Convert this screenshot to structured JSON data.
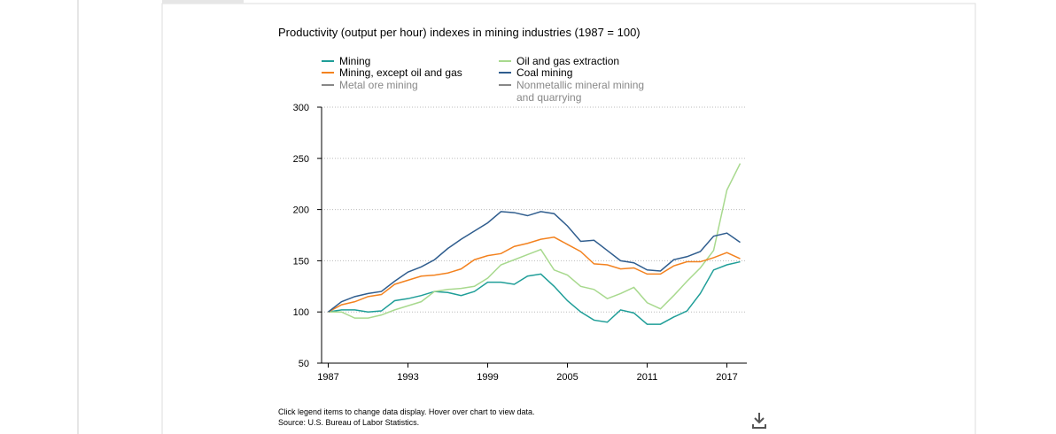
{
  "chart_data": {
    "type": "line",
    "title": "Productivity (output per hour) indexes in mining industries (1987 = 100)",
    "x": [
      1987,
      1988,
      1989,
      1990,
      1991,
      1992,
      1993,
      1994,
      1995,
      1996,
      1997,
      1998,
      1999,
      2000,
      2001,
      2002,
      2003,
      2004,
      2005,
      2006,
      2007,
      2008,
      2009,
      2010,
      2011,
      2012,
      2013,
      2014,
      2015,
      2016,
      2017,
      2018
    ],
    "series": [
      {
        "name": "Mining",
        "color": "#1f9e98",
        "visible": true,
        "values": [
          100,
          102,
          102,
          100,
          101,
          111,
          113,
          116,
          120,
          119,
          116,
          120,
          129,
          129,
          127,
          135,
          137,
          125,
          111,
          100,
          92,
          90,
          102,
          99,
          88,
          88,
          95,
          101,
          118,
          141,
          146,
          149
        ]
      },
      {
        "name": "Oil and gas extraction",
        "color": "#a8d98e",
        "visible": true,
        "values": [
          100,
          100,
          94,
          94,
          97,
          102,
          106,
          110,
          120,
          122,
          123,
          125,
          133,
          146,
          151,
          156,
          161,
          141,
          136,
          125,
          122,
          113,
          118,
          124,
          109,
          103,
          116,
          130,
          143,
          160,
          219,
          245
        ]
      },
      {
        "name": "Mining, except oil and gas",
        "color": "#f3821f",
        "visible": true,
        "values": [
          100,
          107,
          110,
          115,
          117,
          127,
          131,
          135,
          136,
          138,
          142,
          151,
          155,
          157,
          164,
          167,
          171,
          173,
          166,
          159,
          147,
          146,
          142,
          143,
          137,
          137,
          145,
          149,
          149,
          153,
          158,
          152
        ]
      },
      {
        "name": "Coal mining",
        "color": "#2f5d8e",
        "visible": true,
        "values": [
          100,
          110,
          115,
          118,
          120,
          130,
          139,
          144,
          151,
          162,
          171,
          179,
          187,
          198,
          197,
          194,
          198,
          196,
          184,
          169,
          170,
          160,
          150,
          148,
          141,
          140,
          151,
          154,
          159,
          174,
          177,
          168
        ]
      },
      {
        "name": "Metal ore mining",
        "color": "#888888",
        "visible": false,
        "values": [
          null,
          null,
          null,
          null,
          null,
          null,
          null,
          null,
          null,
          null,
          null,
          null,
          null,
          null,
          null,
          null,
          null,
          null,
          null,
          null,
          null,
          null,
          null,
          null,
          null,
          null,
          null,
          null,
          null,
          null,
          null,
          null
        ]
      },
      {
        "name": "Nonmetallic mineral mining and quarrying",
        "color": "#888888",
        "visible": false,
        "values": [
          null,
          null,
          null,
          null,
          null,
          null,
          null,
          null,
          null,
          null,
          null,
          null,
          null,
          null,
          null,
          null,
          null,
          null,
          null,
          null,
          null,
          null,
          null,
          null,
          null,
          null,
          null,
          null,
          null,
          null,
          null,
          null
        ]
      }
    ],
    "xlim": [
      1986.5,
      2018.5
    ],
    "xticks": [
      1987,
      1993,
      1999,
      2005,
      2011,
      2017
    ],
    "ylim": [
      50,
      300
    ],
    "yticks": [
      50,
      100,
      150,
      200,
      250,
      300
    ],
    "grid": true,
    "notes": [
      "Click legend items to change data display. Hover over chart to view data.",
      "Source: U.S. Bureau of Labor Statistics."
    ]
  }
}
